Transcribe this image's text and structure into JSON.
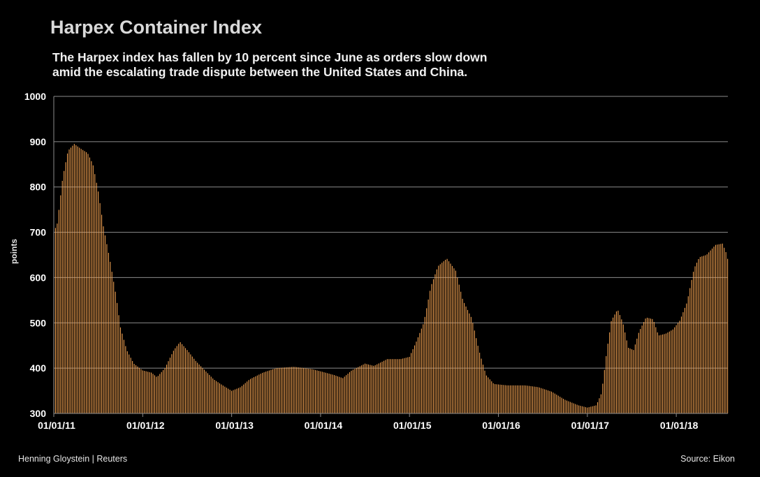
{
  "header": {
    "title": "Harpex Container Index",
    "subtitle_line1": "The Harpex index has fallen by 10 percent since June as orders slow down",
    "subtitle_line2": "amid the escalating trade dispute between the United States and China."
  },
  "footer": {
    "byline": "Henning Gloystein | Reuters",
    "source": "Source: Eikon"
  },
  "colors": {
    "background": "#000000",
    "bar": "#f0a050",
    "grid": "#8c8c8c"
  },
  "chart_data": {
    "type": "bar",
    "title": "Harpex Container Index",
    "xlabel": "",
    "ylabel": "points",
    "ylim": [
      300,
      1000
    ],
    "yticks": [
      300,
      400,
      500,
      600,
      700,
      800,
      900,
      1000
    ],
    "x_tick_labels": [
      "01/01/11",
      "01/01/12",
      "01/01/13",
      "01/01/14",
      "01/01/15",
      "01/01/16",
      "01/01/17",
      "01/01/18"
    ],
    "x_start": "2011-01-01",
    "x_end": "2018-08-01",
    "frequency": "weekly",
    "series": [
      {
        "name": "Harpex",
        "anchors": [
          {
            "t": 2011.0,
            "v": 700
          },
          {
            "t": 2011.04,
            "v": 720
          },
          {
            "t": 2011.1,
            "v": 820
          },
          {
            "t": 2011.16,
            "v": 880
          },
          {
            "t": 2011.23,
            "v": 895
          },
          {
            "t": 2011.3,
            "v": 885
          },
          {
            "t": 2011.38,
            "v": 875
          },
          {
            "t": 2011.44,
            "v": 850
          },
          {
            "t": 2011.5,
            "v": 790
          },
          {
            "t": 2011.56,
            "v": 710
          },
          {
            "t": 2011.63,
            "v": 640
          },
          {
            "t": 2011.7,
            "v": 560
          },
          {
            "t": 2011.75,
            "v": 490
          },
          {
            "t": 2011.82,
            "v": 440
          },
          {
            "t": 2011.9,
            "v": 410
          },
          {
            "t": 2012.0,
            "v": 395
          },
          {
            "t": 2012.1,
            "v": 390
          },
          {
            "t": 2012.16,
            "v": 380
          },
          {
            "t": 2012.25,
            "v": 400
          },
          {
            "t": 2012.35,
            "v": 440
          },
          {
            "t": 2012.42,
            "v": 458
          },
          {
            "t": 2012.5,
            "v": 440
          },
          {
            "t": 2012.6,
            "v": 415
          },
          {
            "t": 2012.7,
            "v": 395
          },
          {
            "t": 2012.8,
            "v": 375
          },
          {
            "t": 2012.9,
            "v": 362
          },
          {
            "t": 2013.0,
            "v": 350
          },
          {
            "t": 2013.1,
            "v": 358
          },
          {
            "t": 2013.2,
            "v": 375
          },
          {
            "t": 2013.35,
            "v": 390
          },
          {
            "t": 2013.5,
            "v": 400
          },
          {
            "t": 2013.7,
            "v": 403
          },
          {
            "t": 2013.9,
            "v": 398
          },
          {
            "t": 2014.0,
            "v": 393
          },
          {
            "t": 2014.15,
            "v": 385
          },
          {
            "t": 2014.25,
            "v": 378
          },
          {
            "t": 2014.35,
            "v": 395
          },
          {
            "t": 2014.5,
            "v": 410
          },
          {
            "t": 2014.6,
            "v": 405
          },
          {
            "t": 2014.75,
            "v": 420
          },
          {
            "t": 2014.9,
            "v": 420
          },
          {
            "t": 2015.0,
            "v": 425
          },
          {
            "t": 2015.08,
            "v": 460
          },
          {
            "t": 2015.16,
            "v": 500
          },
          {
            "t": 2015.24,
            "v": 580
          },
          {
            "t": 2015.32,
            "v": 625
          },
          {
            "t": 2015.42,
            "v": 642
          },
          {
            "t": 2015.52,
            "v": 615
          },
          {
            "t": 2015.6,
            "v": 550
          },
          {
            "t": 2015.7,
            "v": 510
          },
          {
            "t": 2015.78,
            "v": 440
          },
          {
            "t": 2015.86,
            "v": 385
          },
          {
            "t": 2015.95,
            "v": 365
          },
          {
            "t": 2016.1,
            "v": 362
          },
          {
            "t": 2016.3,
            "v": 362
          },
          {
            "t": 2016.45,
            "v": 358
          },
          {
            "t": 2016.6,
            "v": 348
          },
          {
            "t": 2016.75,
            "v": 330
          },
          {
            "t": 2016.9,
            "v": 318
          },
          {
            "t": 2017.0,
            "v": 313
          },
          {
            "t": 2017.1,
            "v": 318
          },
          {
            "t": 2017.16,
            "v": 345
          },
          {
            "t": 2017.22,
            "v": 440
          },
          {
            "t": 2017.27,
            "v": 505
          },
          {
            "t": 2017.34,
            "v": 530
          },
          {
            "t": 2017.4,
            "v": 500
          },
          {
            "t": 2017.46,
            "v": 445
          },
          {
            "t": 2017.52,
            "v": 440
          },
          {
            "t": 2017.58,
            "v": 480
          },
          {
            "t": 2017.66,
            "v": 512
          },
          {
            "t": 2017.74,
            "v": 508
          },
          {
            "t": 2017.8,
            "v": 472
          },
          {
            "t": 2017.88,
            "v": 476
          },
          {
            "t": 2017.96,
            "v": 485
          },
          {
            "t": 2018.04,
            "v": 505
          },
          {
            "t": 2018.12,
            "v": 545
          },
          {
            "t": 2018.2,
            "v": 620
          },
          {
            "t": 2018.26,
            "v": 645
          },
          {
            "t": 2018.34,
            "v": 650
          },
          {
            "t": 2018.44,
            "v": 672
          },
          {
            "t": 2018.52,
            "v": 675
          },
          {
            "t": 2018.57,
            "v": 650
          },
          {
            "t": 2018.59,
            "v": 625
          }
        ]
      }
    ]
  }
}
